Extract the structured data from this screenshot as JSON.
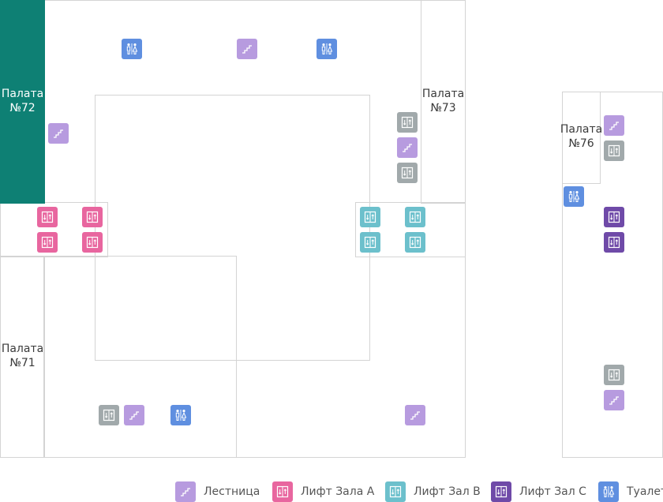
{
  "rooms": {
    "ward72": "Палата\n№72",
    "ward73": "Палата\n№73",
    "ward71": "Палата\n№71",
    "ward76": "Палата\n№76"
  },
  "colors": {
    "highlight_ward": "#0e8074",
    "stairs": "#b79bdf",
    "lift_a": "#e8669f",
    "lift_b": "#6cc0cc",
    "lift_c": "#6f4aa8",
    "lift_generic": "#a1a9ab",
    "toilet": "#5f8fe0"
  },
  "legend": [
    {
      "key": "stairs",
      "label": "Лестница",
      "icon": "stairs-icon"
    },
    {
      "key": "liftA",
      "label": "Лифт Зала А",
      "icon": "elevator-icon"
    },
    {
      "key": "liftB",
      "label": "Лифт Зал В",
      "icon": "elevator-icon"
    },
    {
      "key": "liftC",
      "label": "Лифт Зал С",
      "icon": "elevator-icon"
    },
    {
      "key": "toilet",
      "label": "Туалет",
      "icon": "restroom-icon"
    }
  ]
}
